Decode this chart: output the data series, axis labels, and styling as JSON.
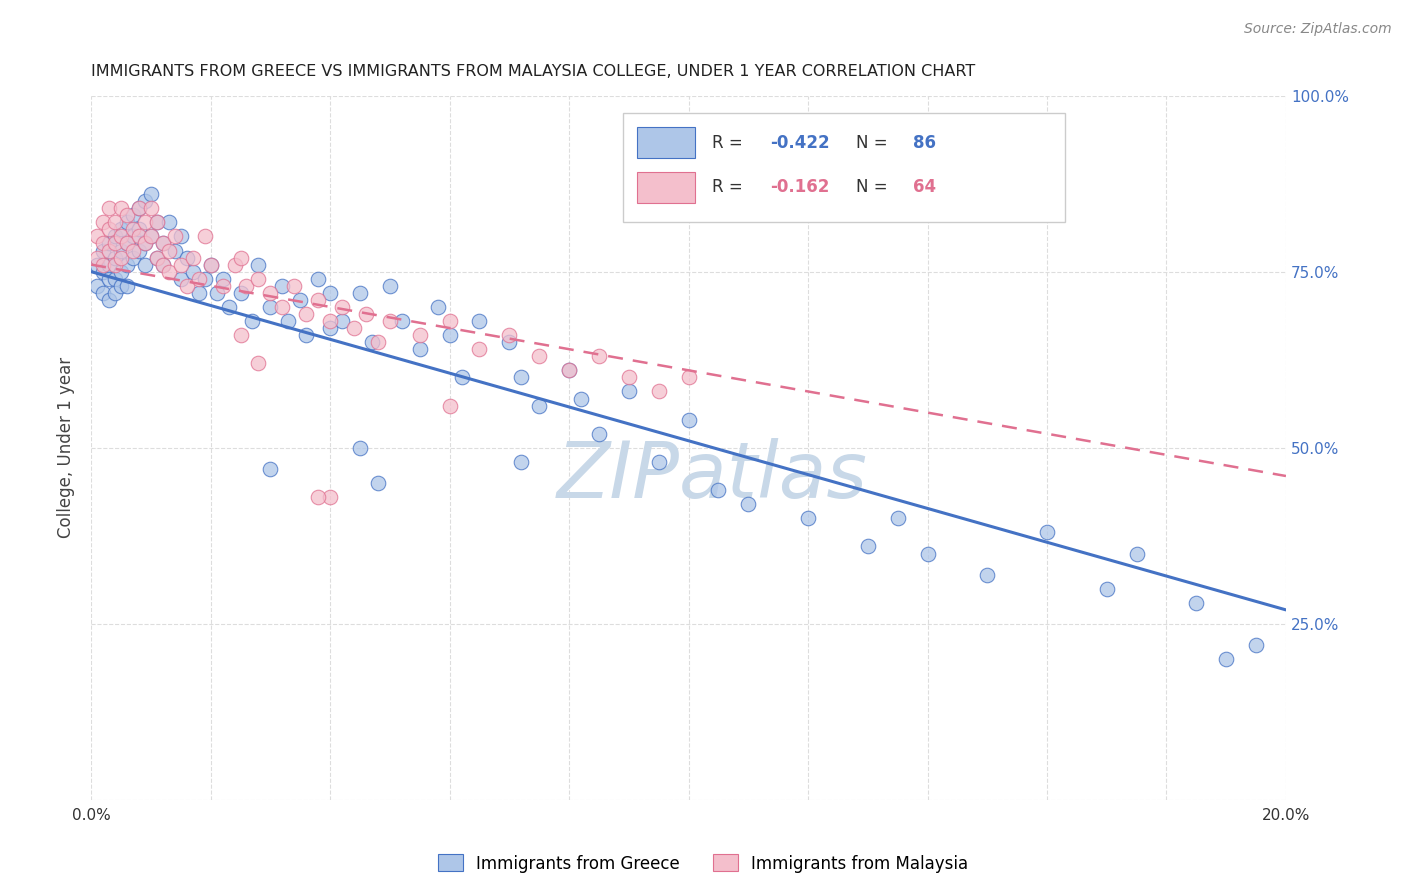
{
  "title": "IMMIGRANTS FROM GREECE VS IMMIGRANTS FROM MALAYSIA COLLEGE, UNDER 1 YEAR CORRELATION CHART",
  "source": "Source: ZipAtlas.com",
  "ylabel": "College, Under 1 year",
  "legend_label1": "Immigrants from Greece",
  "legend_label2": "Immigrants from Malaysia",
  "r1": -0.422,
  "n1": 86,
  "r2": -0.162,
  "n2": 64,
  "color1": "#aec6e8",
  "color2": "#f4bfcc",
  "line_color1": "#4472c4",
  "line_color2": "#e07090",
  "xmin": 0.0,
  "xmax": 0.2,
  "ymin": 0.0,
  "ymax": 1.0,
  "x_ticks": [
    0.0,
    0.02,
    0.04,
    0.06,
    0.08,
    0.1,
    0.12,
    0.14,
    0.16,
    0.18,
    0.2
  ],
  "y_ticks": [
    0.0,
    0.25,
    0.5,
    0.75,
    1.0
  ],
  "x_tick_labels": [
    "0.0%",
    "",
    "",
    "",
    "",
    "",
    "",
    "",
    "",
    "",
    "20.0%"
  ],
  "y_tick_labels_right": [
    "",
    "25.0%",
    "50.0%",
    "75.0%",
    "100.0%"
  ],
  "background_color": "#ffffff",
  "grid_color": "#dddddd",
  "watermark": "ZIPatlas",
  "watermark_color": "#c8d8e8",
  "greece_line": [
    0.0,
    0.75,
    0.2,
    0.27
  ],
  "malaysia_line": [
    0.0,
    0.76,
    0.2,
    0.46
  ]
}
